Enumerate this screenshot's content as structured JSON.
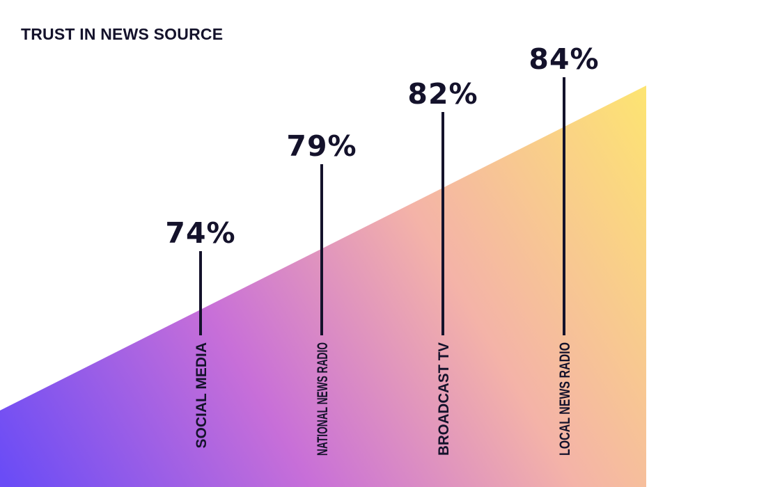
{
  "chart_data": {
    "type": "bar",
    "title": "TRUST IN NEWS SOURCE",
    "categories": [
      "SOCIAL MEDIA",
      "NATIONAL NEWS RADIO",
      "BROADCAST TV",
      "LOCAL NEWS RADIO"
    ],
    "values": [
      74,
      79,
      82,
      84
    ],
    "value_suffix": "%",
    "xlabel": "",
    "ylabel": "",
    "grid": false,
    "legend": "none",
    "colors": {
      "gradient_start": "#6a4cf6",
      "gradient_mid_1": "#c86fd8",
      "gradient_mid_2": "#f4b3a8",
      "gradient_end": "#fde472",
      "line": "#14122b",
      "text": "#14122b"
    }
  }
}
